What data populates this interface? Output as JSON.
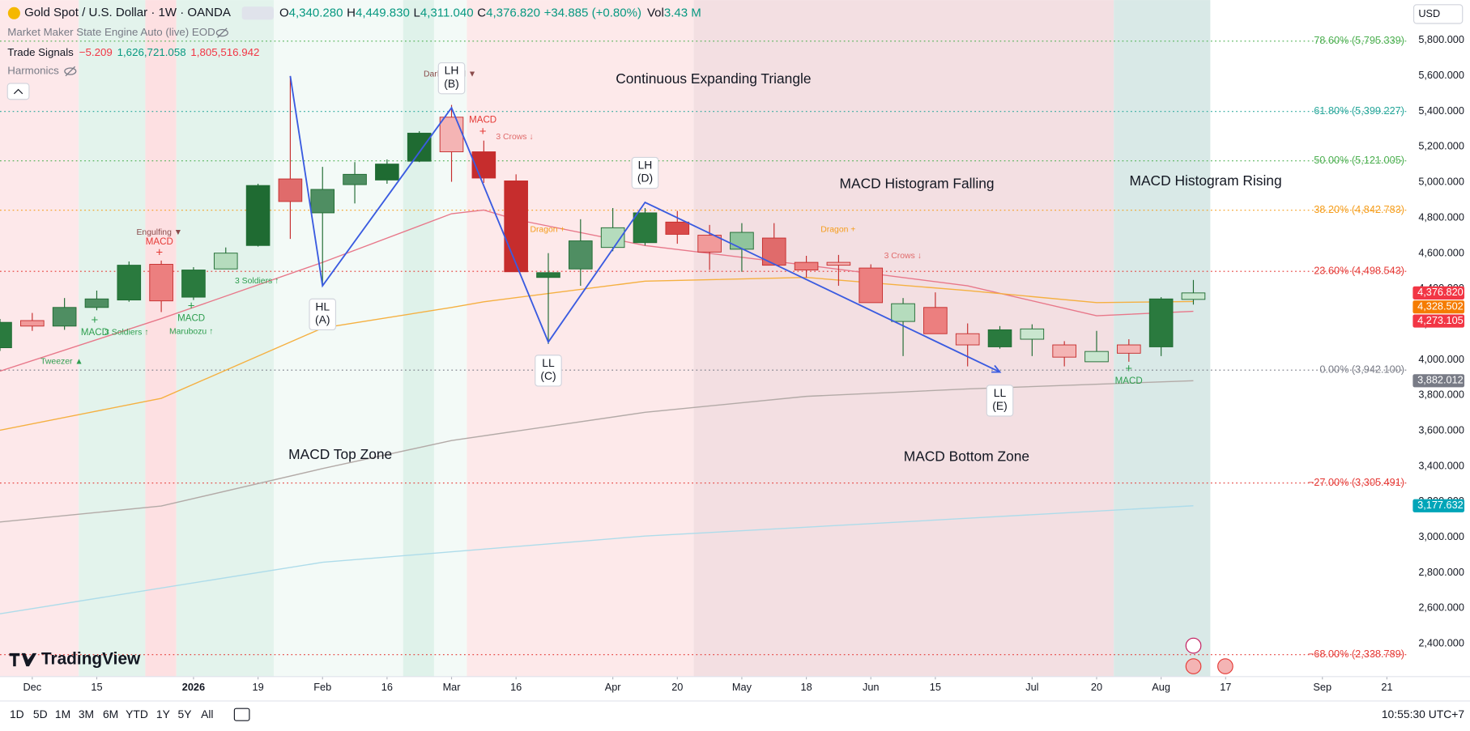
{
  "header": {
    "symbol": "Gold Spot / U.S. Dollar · 1W · OANDA",
    "open_label": "O",
    "open": "4,340.280",
    "high_label": "H",
    "high": "4,449.830",
    "low_label": "L",
    "low": "4,311.040",
    "close_label": "C",
    "close": "4,376.820",
    "change": "+34.885 (+0.80%)",
    "vol_label": "Vol",
    "vol": "3.43 M"
  },
  "indicators": {
    "engine": "Market Maker State Engine Auto (live) EOD",
    "signals_name": "Trade Signals",
    "signals_values": [
      "−5.209",
      "1,626,721.058",
      "1,805,516.942"
    ],
    "harmonics": "Harmonics"
  },
  "currency": "USD",
  "logo": "TradingView",
  "toolbar": {
    "ranges": [
      "1D",
      "5D",
      "1M",
      "3M",
      "6M",
      "YTD",
      "1Y",
      "5Y",
      "All"
    ],
    "time": "10:55:30 UTC+7"
  },
  "signals": [
    "Engulfing ▼",
    "MACD",
    "+",
    "+",
    "MACD",
    "3 Soldiers ↑",
    "+",
    "MACD",
    "Marubozu ↑",
    "Tweezer ▲",
    "3 Soldiers ↑",
    "Dark Cloud ▼",
    "MACD",
    "+",
    "3 Crows ↓",
    "Dragon +",
    "Dragon +",
    "3 Crows ↓",
    "+",
    "MACD"
  ],
  "notes": [
    "Continuous Expanding Triangle",
    "MACD Histogram Falling",
    "MACD Histogram Rising",
    "MACD Top Zone",
    "MACD Bottom Zone"
  ],
  "chart_data": {
    "type": "candlestick",
    "xlim": [
      0,
      43.6
    ],
    "ylim": [
      2215,
      6027
    ],
    "grid": false,
    "xticks": [
      {
        "value": 1,
        "label": "Dec"
      },
      {
        "value": 3,
        "label": "15"
      },
      {
        "value": 6,
        "label": "2026"
      },
      {
        "value": 8,
        "label": "19"
      },
      {
        "value": 10,
        "label": "Feb"
      },
      {
        "value": 12,
        "label": "16"
      },
      {
        "value": 14,
        "label": "Mar"
      },
      {
        "value": 16,
        "label": "16"
      },
      {
        "value": 19,
        "label": "Apr"
      },
      {
        "value": 21,
        "label": "20"
      },
      {
        "value": 23,
        "label": "May"
      },
      {
        "value": 25,
        "label": "18"
      },
      {
        "value": 27,
        "label": "Jun"
      },
      {
        "value": 29,
        "label": "15"
      },
      {
        "value": 32,
        "label": "Jul"
      },
      {
        "value": 34,
        "label": "20"
      },
      {
        "value": 36,
        "label": "Aug"
      },
      {
        "value": 38,
        "label": "17"
      },
      {
        "value": 41,
        "label": "Sep"
      },
      {
        "value": 43,
        "label": "21"
      }
    ],
    "yticks": [
      {
        "value": 5800,
        "label": "5,800.000"
      },
      {
        "value": 5600,
        "label": "5,600.000"
      },
      {
        "value": 5400,
        "label": "5,400.000"
      },
      {
        "value": 5200,
        "label": "5,200.000"
      },
      {
        "value": 5000,
        "label": "5,000.000"
      },
      {
        "value": 4800,
        "label": "4,800.000"
      },
      {
        "value": 4600,
        "label": "4,600.000"
      },
      {
        "value": 4400,
        "label": "4,400.000"
      },
      {
        "value": 4200,
        "label": "4,200.000"
      },
      {
        "value": 4000,
        "label": "4,000.000"
      },
      {
        "value": 3800,
        "label": "3,800.000"
      },
      {
        "value": 3600,
        "label": "3,600.000"
      },
      {
        "value": 3400,
        "label": "3,400.000"
      },
      {
        "value": 3200,
        "label": "3,200.000"
      },
      {
        "value": 3000,
        "label": "3,000.000"
      },
      {
        "value": 2800,
        "label": "2,800.000"
      },
      {
        "value": 2600,
        "label": "2,600.000"
      },
      {
        "value": 2400,
        "label": "2,400.000"
      }
    ],
    "candles": [
      {
        "open": 4068,
        "high": 4230,
        "low": 4050,
        "close": 4211,
        "color": "#2a7a3e"
      },
      {
        "open": 4221,
        "high": 4264,
        "low": 4163,
        "close": 4190,
        "color": "#f19a9a"
      },
      {
        "open": 4190,
        "high": 4348,
        "low": 4169,
        "close": 4295,
        "color": "#4f8e62"
      },
      {
        "open": 4295,
        "high": 4390,
        "low": 4279,
        "close": 4343,
        "color": "#4f8e62"
      },
      {
        "open": 4337,
        "high": 4554,
        "low": 4327,
        "close": 4533,
        "color": "#2a7a3e"
      },
      {
        "open": 4538,
        "high": 4559,
        "low": 4269,
        "close": 4332,
        "color": "#ec7f7f"
      },
      {
        "open": 4353,
        "high": 4522,
        "low": 4337,
        "close": 4506,
        "color": "#2a7a3e"
      },
      {
        "open": 4512,
        "high": 4633,
        "low": 4512,
        "close": 4601,
        "color": "#b5dcbd"
      },
      {
        "open": 4644,
        "high": 4992,
        "low": 4638,
        "close": 4982,
        "color": "#1f6b32"
      },
      {
        "open": 5019,
        "high": 5599,
        "low": 4681,
        "close": 4892,
        "color": "#e06b6b"
      },
      {
        "open": 4828,
        "high": 5087,
        "low": 4417,
        "close": 4960,
        "color": "#4f8e62"
      },
      {
        "open": 4987,
        "high": 5114,
        "low": 4881,
        "close": 5045,
        "color": "#4f8e62"
      },
      {
        "open": 5013,
        "high": 5129,
        "low": 4992,
        "close": 5103,
        "color": "#1f6b32"
      },
      {
        "open": 5119,
        "high": 5288,
        "low": 5114,
        "close": 5277,
        "color": "#1f6b32"
      },
      {
        "open": 5367,
        "high": 5436,
        "low": 5003,
        "close": 5172,
        "color": "#f4b4b4"
      },
      {
        "open": 5172,
        "high": 5235,
        "low": 4997,
        "close": 5024,
        "color": "#c62d2d"
      },
      {
        "open": 5008,
        "high": 5045,
        "low": 4496,
        "close": 4496,
        "color": "#c62d2d"
      },
      {
        "open": 4464,
        "high": 4601,
        "low": 4089,
        "close": 4491,
        "color": "#2a7a3e"
      },
      {
        "open": 4512,
        "high": 4792,
        "low": 4417,
        "close": 4670,
        "color": "#4f8e62"
      },
      {
        "open": 4633,
        "high": 4855,
        "low": 4612,
        "close": 4744,
        "color": "#b5dcbd"
      },
      {
        "open": 4660,
        "high": 4855,
        "low": 4644,
        "close": 4828,
        "color": "#2a7a3e"
      },
      {
        "open": 4776,
        "high": 4839,
        "low": 4654,
        "close": 4707,
        "color": "#d94a4a"
      },
      {
        "open": 4702,
        "high": 4760,
        "low": 4506,
        "close": 4607,
        "color": "#f19a9a"
      },
      {
        "open": 4623,
        "high": 4770,
        "low": 4496,
        "close": 4718,
        "color": "#8fc49c"
      },
      {
        "open": 4686,
        "high": 4770,
        "low": 4533,
        "close": 4533,
        "color": "#e06b6b"
      },
      {
        "open": 4549,
        "high": 4586,
        "low": 4464,
        "close": 4506,
        "color": "#ec7f7f"
      },
      {
        "open": 4549,
        "high": 4591,
        "low": 4417,
        "close": 4533,
        "color": "#f4b4b4"
      },
      {
        "open": 4517,
        "high": 4538,
        "low": 4322,
        "close": 4322,
        "color": "#ec7f7f"
      },
      {
        "open": 4216,
        "high": 4348,
        "low": 4021,
        "close": 4316,
        "color": "#b5dcbd"
      },
      {
        "open": 4295,
        "high": 4380,
        "low": 4147,
        "close": 4147,
        "color": "#ec7f7f"
      },
      {
        "open": 4147,
        "high": 4205,
        "low": 3963,
        "close": 4084,
        "color": "#f4b4b4"
      },
      {
        "open": 4073,
        "high": 4190,
        "low": 4063,
        "close": 4169,
        "color": "#2a7a3e"
      },
      {
        "open": 4116,
        "high": 4200,
        "low": 4021,
        "close": 4174,
        "color": "#c9e6cf"
      },
      {
        "open": 4084,
        "high": 4105,
        "low": 3963,
        "close": 4015,
        "color": "#f4b4b4"
      },
      {
        "open": 3989,
        "high": 4163,
        "low": 3989,
        "close": 4047,
        "color": "#c9e6cf"
      },
      {
        "open": 4084,
        "high": 4116,
        "low": 3989,
        "close": 4037,
        "color": "#f4b4b4"
      },
      {
        "open": 4073,
        "high": 4353,
        "low": 4021,
        "close": 4343,
        "color": "#2a7a3e"
      },
      {
        "open": 4340.28,
        "high": 4449.83,
        "low": 4311.04,
        "close": 4376.82,
        "color": "#c9e6cf"
      }
    ],
    "series": [
      {
        "color": "#e8788a",
        "x": [
          0,
          5,
          10,
          14,
          15,
          16,
          20,
          25,
          30,
          34,
          37
        ],
        "values": [
          3936,
          4232,
          4549,
          4823,
          4844,
          4790,
          4644,
          4533,
          4417,
          4248,
          4273.105
        ]
      },
      {
        "color": "#f5b041",
        "x": [
          0,
          5,
          10,
          14,
          15,
          20,
          25,
          30,
          34,
          37
        ],
        "values": [
          3603,
          3783,
          4179,
          4295,
          4327,
          4443,
          4464,
          4390,
          4322,
          4328.502
        ]
      },
      {
        "color": "#b3aaa7",
        "x": [
          0,
          5,
          10,
          14,
          20,
          25,
          30,
          37
        ],
        "values": [
          3086,
          3176,
          3387,
          3545,
          3704,
          3794,
          3836,
          3882.012
        ]
      },
      {
        "color": "#aedcea",
        "x": [
          0,
          10,
          20,
          30,
          37
        ],
        "values": [
          2569,
          2859,
          3007,
          3107,
          3177.632
        ]
      }
    ],
    "fib_levels": [
      {
        "value": 5795.339,
        "label": "78.60% (5,795.339)",
        "color": "#4caf50"
      },
      {
        "value": 5399.227,
        "label": "61.80% (5,399.227)",
        "color": "#26a69a"
      },
      {
        "value": 5121.005,
        "label": "50.00% (5,121.005)",
        "color": "#4caf50"
      },
      {
        "value": 4842.783,
        "label": "38.20% (4,842.783)",
        "color": "#f59d1b"
      },
      {
        "value": 4498.543,
        "label": "23.60% (4,498.543)",
        "color": "#e53935"
      },
      {
        "value": 3942.1,
        "label": "0.00% (3,942.100)",
        "color": "#787b86"
      },
      {
        "value": 3305.491,
        "label": "−27.00% (3,305.491)",
        "color": "#e53935"
      },
      {
        "value": 2338.789,
        "label": "−68.00% (2,338.789)",
        "color": "#e53935"
      }
    ],
    "zigzag": {
      "color": "#3a5be0",
      "x": [
        9,
        10,
        14,
        17,
        20,
        31
      ],
      "y": [
        5599,
        4417,
        5420,
        4100,
        4887,
        3931
      ],
      "labels": [
        null,
        [
          "HL",
          "(A)"
        ],
        [
          "LH",
          "(B)"
        ],
        [
          "LL",
          "(C)"
        ],
        [
          "LH",
          "(D)"
        ],
        [
          "LL",
          "(E)"
        ]
      ]
    },
    "price_labels": [
      {
        "value": 4376.82,
        "label": "4,376.820",
        "color": "#f23645"
      },
      {
        "value": 4328.502,
        "label": "4,328.502",
        "color": "#f57c00"
      },
      {
        "value": 4273.105,
        "label": "4,273.105",
        "color": "#f23645"
      },
      {
        "value": 3882.012,
        "label": "3,882.012",
        "color": "#787b86"
      },
      {
        "value": 3177.632,
        "label": "3,177.632",
        "color": "#00a5b8"
      }
    ]
  }
}
